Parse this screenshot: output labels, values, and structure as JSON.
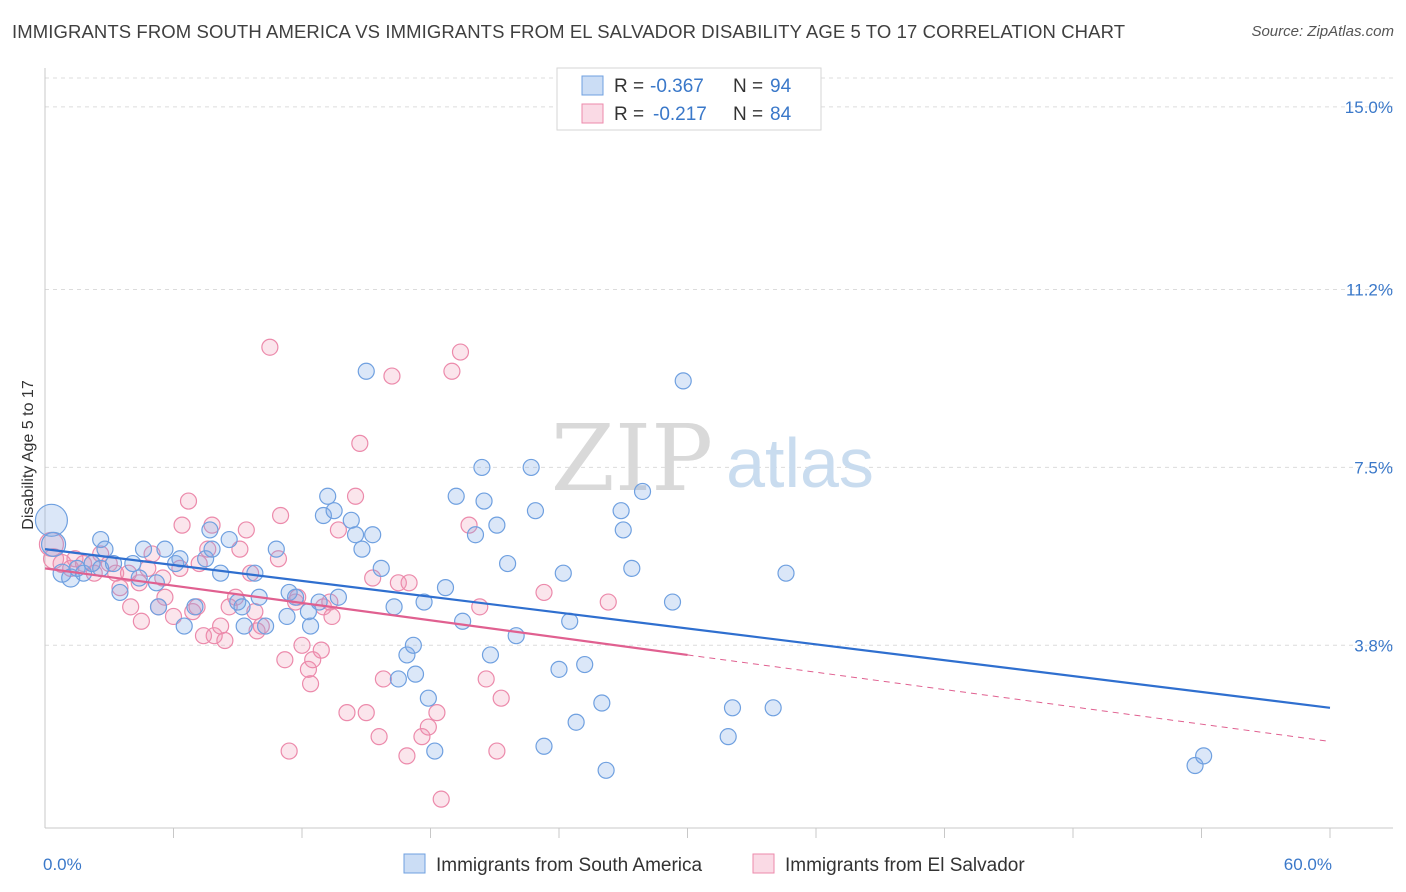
{
  "title": "IMMIGRANTS FROM SOUTH AMERICA VS IMMIGRANTS FROM EL SALVADOR DISABILITY AGE 5 TO 17 CORRELATION CHART",
  "source": "Source: ZipAtlas.com",
  "watermark": {
    "zip": "ZIP",
    "atlas": "atlas"
  },
  "legend": {
    "rows": [
      {
        "r_label": "R =",
        "r_value": "-0.367",
        "n_label": "N =",
        "n_value": "94"
      },
      {
        "r_label": "R =",
        "r_value": "-0.217",
        "n_label": "N =",
        "n_value": "84"
      }
    ]
  },
  "colors": {
    "blue": "#6fa0e0",
    "blue_fill": "rgba(124,170,230,0.28)",
    "blue_line": "#2f6fcf",
    "pink": "#ec8aab",
    "pink_fill": "rgba(240,150,180,0.25)",
    "pink_line": "#e06090",
    "tick_text": "#3a78c9"
  },
  "chart_data": {
    "type": "scatter",
    "title": "IMMIGRANTS FROM SOUTH AMERICA VS IMMIGRANTS FROM EL SALVADOR DISABILITY AGE 5 TO 17 CORRELATION CHART",
    "xlabel": "",
    "ylabel": "Disability Age 5 to 17",
    "xlim": [
      0,
      60
    ],
    "ylim": [
      0,
      15.6
    ],
    "y_ticks": [
      {
        "value": 3.8,
        "label": "3.8%"
      },
      {
        "value": 7.5,
        "label": "7.5%"
      },
      {
        "value": 11.2,
        "label": "11.2%"
      },
      {
        "value": 15.0,
        "label": "15.0%"
      }
    ],
    "x_tick_labels": [
      {
        "value": 0,
        "label": "0.0%"
      },
      {
        "value": 60,
        "label": "60.0%"
      }
    ],
    "x_minor_ticks": [
      6,
      12,
      18,
      24,
      30,
      36,
      42,
      48,
      54,
      60
    ],
    "grid": true,
    "legend_position": "top-center",
    "series": [
      {
        "name": "Immigrants from South America",
        "color": "blue",
        "r": -0.367,
        "n": 94,
        "trend": {
          "x0": 0,
          "y0": 5.8,
          "x1": 60,
          "y1": 2.5,
          "dashed_from": null
        },
        "points": [
          [
            0.3,
            6.4,
            16
          ],
          [
            0.4,
            5.9,
            12
          ],
          [
            0.8,
            5.3,
            9
          ],
          [
            1.2,
            5.2,
            9
          ],
          [
            1.5,
            5.4,
            8
          ],
          [
            1.8,
            5.3,
            8
          ],
          [
            2.2,
            5.5,
            8
          ],
          [
            2.6,
            5.4,
            8
          ],
          [
            2.6,
            6.0,
            8
          ],
          [
            2.8,
            5.8,
            8
          ],
          [
            3.2,
            5.5,
            8
          ],
          [
            3.5,
            4.9,
            8
          ],
          [
            4.1,
            5.5,
            8
          ],
          [
            4.4,
            5.2,
            8
          ],
          [
            4.6,
            5.8,
            8
          ],
          [
            5.2,
            5.1,
            8
          ],
          [
            5.3,
            4.6,
            8
          ],
          [
            5.6,
            5.8,
            8
          ],
          [
            6.1,
            5.5,
            8
          ],
          [
            6.5,
            4.2,
            8
          ],
          [
            6.3,
            5.6,
            8
          ],
          [
            7.0,
            4.6,
            8
          ],
          [
            7.5,
            5.6,
            8
          ],
          [
            7.7,
            6.2,
            8
          ],
          [
            7.8,
            5.8,
            8
          ],
          [
            8.2,
            5.3,
            8
          ],
          [
            8.6,
            6.0,
            8
          ],
          [
            9.0,
            4.7,
            8
          ],
          [
            9.2,
            4.6,
            8
          ],
          [
            9.3,
            4.2,
            8
          ],
          [
            9.8,
            5.3,
            8
          ],
          [
            10.0,
            4.8,
            8
          ],
          [
            10.3,
            4.2,
            8
          ],
          [
            10.8,
            5.8,
            8
          ],
          [
            11.3,
            4.4,
            8
          ],
          [
            11.4,
            4.9,
            8
          ],
          [
            11.7,
            4.8,
            8
          ],
          [
            12.3,
            4.5,
            8
          ],
          [
            12.4,
            4.2,
            8
          ],
          [
            12.8,
            4.7,
            8
          ],
          [
            13.0,
            6.5,
            8
          ],
          [
            13.2,
            6.9,
            8
          ],
          [
            13.5,
            6.6,
            8
          ],
          [
            13.7,
            4.8,
            8
          ],
          [
            14.3,
            6.4,
            8
          ],
          [
            14.5,
            6.1,
            8
          ],
          [
            14.8,
            5.8,
            8
          ],
          [
            15.0,
            9.5,
            8
          ],
          [
            15.3,
            6.1,
            8
          ],
          [
            15.7,
            5.4,
            8
          ],
          [
            16.3,
            4.6,
            8
          ],
          [
            16.5,
            3.1,
            8
          ],
          [
            16.9,
            3.6,
            8
          ],
          [
            17.2,
            3.8,
            8
          ],
          [
            17.3,
            3.2,
            8
          ],
          [
            17.7,
            4.7,
            8
          ],
          [
            17.9,
            2.7,
            8
          ],
          [
            18.2,
            1.6,
            8
          ],
          [
            18.7,
            5.0,
            8
          ],
          [
            19.2,
            6.9,
            8
          ],
          [
            19.5,
            4.3,
            8
          ],
          [
            20.1,
            6.1,
            8
          ],
          [
            20.4,
            7.5,
            8
          ],
          [
            20.5,
            6.8,
            8
          ],
          [
            20.8,
            3.6,
            8
          ],
          [
            21.1,
            6.3,
            8
          ],
          [
            21.6,
            5.5,
            8
          ],
          [
            22.0,
            4.0,
            8
          ],
          [
            22.7,
            7.5,
            8
          ],
          [
            22.9,
            6.6,
            8
          ],
          [
            23.3,
            1.7,
            8
          ],
          [
            24.0,
            3.3,
            8
          ],
          [
            24.2,
            5.3,
            8
          ],
          [
            24.5,
            4.3,
            8
          ],
          [
            24.8,
            2.2,
            8
          ],
          [
            25.2,
            3.4,
            8
          ],
          [
            26.0,
            2.6,
            8
          ],
          [
            26.2,
            1.2,
            8
          ],
          [
            26.9,
            6.6,
            8
          ],
          [
            27.0,
            6.2,
            8
          ],
          [
            27.4,
            5.4,
            8
          ],
          [
            27.9,
            7.0,
            8
          ],
          [
            29.3,
            4.7,
            8
          ],
          [
            29.8,
            9.3,
            8
          ],
          [
            31.9,
            1.9,
            8
          ],
          [
            32.1,
            2.5,
            8
          ],
          [
            34.0,
            2.5,
            8
          ],
          [
            34.6,
            5.3,
            8
          ],
          [
            53.7,
            1.3,
            8
          ],
          [
            54.1,
            1.5,
            8
          ]
        ]
      },
      {
        "name": "Immigrants from El Salvador",
        "color": "pink",
        "r": -0.217,
        "n": 84,
        "trend": {
          "x0": 0,
          "y0": 5.4,
          "x1": 60,
          "y1": 1.8,
          "dashed_from": 30
        },
        "points": [
          [
            0.3,
            5.9,
            12
          ],
          [
            0.4,
            5.6,
            10
          ],
          [
            0.8,
            5.5,
            9
          ],
          [
            1.2,
            5.4,
            8
          ],
          [
            1.4,
            5.6,
            8
          ],
          [
            1.8,
            5.5,
            8
          ],
          [
            2.2,
            5.5,
            8
          ],
          [
            2.3,
            5.3,
            8
          ],
          [
            2.6,
            5.7,
            8
          ],
          [
            3.0,
            5.5,
            8
          ],
          [
            3.3,
            5.3,
            8
          ],
          [
            3.5,
            5.0,
            8
          ],
          [
            3.9,
            5.3,
            8
          ],
          [
            4.0,
            4.6,
            8
          ],
          [
            4.4,
            5.1,
            8
          ],
          [
            4.5,
            4.3,
            8
          ],
          [
            4.8,
            5.4,
            8
          ],
          [
            5.0,
            5.7,
            8
          ],
          [
            5.3,
            4.6,
            8
          ],
          [
            5.5,
            5.2,
            8
          ],
          [
            5.6,
            4.8,
            8
          ],
          [
            6.0,
            4.4,
            8
          ],
          [
            6.3,
            5.4,
            8
          ],
          [
            6.4,
            6.3,
            8
          ],
          [
            6.7,
            6.8,
            8
          ],
          [
            6.9,
            4.5,
            8
          ],
          [
            7.1,
            4.6,
            8
          ],
          [
            7.2,
            5.5,
            8
          ],
          [
            7.4,
            4.0,
            8
          ],
          [
            7.6,
            5.8,
            8
          ],
          [
            7.8,
            6.3,
            8
          ],
          [
            7.9,
            4.0,
            8
          ],
          [
            8.2,
            4.2,
            8
          ],
          [
            8.4,
            3.9,
            8
          ],
          [
            8.6,
            4.6,
            8
          ],
          [
            8.9,
            4.8,
            8
          ],
          [
            9.1,
            5.8,
            8
          ],
          [
            9.4,
            6.2,
            8
          ],
          [
            9.6,
            5.3,
            8
          ],
          [
            9.8,
            4.5,
            8
          ],
          [
            9.9,
            4.1,
            8
          ],
          [
            10.1,
            4.2,
            8
          ],
          [
            10.5,
            10.0,
            8
          ],
          [
            10.9,
            5.6,
            8
          ],
          [
            11.0,
            6.5,
            8
          ],
          [
            11.2,
            3.5,
            8
          ],
          [
            11.4,
            1.6,
            8
          ],
          [
            11.7,
            4.7,
            8
          ],
          [
            11.8,
            4.8,
            8
          ],
          [
            12.0,
            3.8,
            8
          ],
          [
            12.3,
            3.3,
            8
          ],
          [
            12.4,
            3.0,
            8
          ],
          [
            12.5,
            3.5,
            8
          ],
          [
            12.9,
            3.7,
            8
          ],
          [
            13.0,
            4.6,
            8
          ],
          [
            13.3,
            4.7,
            8
          ],
          [
            13.4,
            4.4,
            8
          ],
          [
            13.7,
            6.2,
            8
          ],
          [
            14.1,
            2.4,
            8
          ],
          [
            14.5,
            6.9,
            8
          ],
          [
            14.7,
            8.0,
            8
          ],
          [
            15.0,
            2.4,
            8
          ],
          [
            15.3,
            5.2,
            8
          ],
          [
            15.6,
            1.9,
            8
          ],
          [
            15.8,
            3.1,
            8
          ],
          [
            16.2,
            9.4,
            8
          ],
          [
            16.5,
            5.1,
            8
          ],
          [
            16.9,
            1.5,
            8
          ],
          [
            17.0,
            5.1,
            8
          ],
          [
            17.6,
            1.9,
            8
          ],
          [
            17.9,
            2.1,
            8
          ],
          [
            18.3,
            2.4,
            8
          ],
          [
            18.5,
            0.6,
            8
          ],
          [
            19.0,
            9.5,
            8
          ],
          [
            19.4,
            9.9,
            8
          ],
          [
            19.8,
            6.3,
            8
          ],
          [
            20.3,
            4.6,
            8
          ],
          [
            20.6,
            3.1,
            8
          ],
          [
            21.1,
            1.6,
            8
          ],
          [
            21.3,
            2.7,
            8
          ],
          [
            23.3,
            4.9,
            8
          ],
          [
            26.3,
            4.7,
            8
          ]
        ]
      }
    ]
  },
  "bottom_legend": [
    {
      "label": "Immigrants from South America"
    },
    {
      "label": "Immigrants from El Salvador"
    }
  ]
}
